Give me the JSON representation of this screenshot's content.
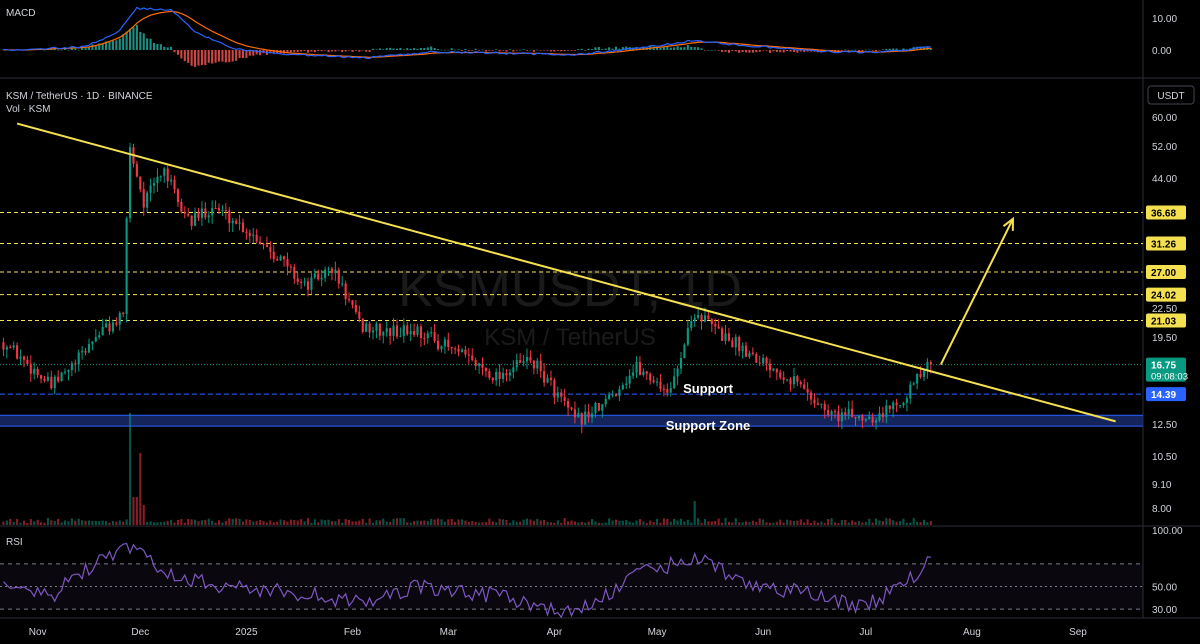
{
  "header": {
    "symbol_line": "KSM / TetherUS · 1D · BINANCE",
    "vol_line": "Vol · KSM",
    "currency_button": "USDT"
  },
  "watermark": {
    "main": "KSMUSDT, 1D",
    "sub": "KSM / TetherUS"
  },
  "macd": {
    "title": "MACD",
    "ticks": [
      "10.00",
      "0.00"
    ]
  },
  "rsi": {
    "title": "RSI",
    "ticks": [
      "100.00",
      "50.00",
      "30.00"
    ]
  },
  "price_axis": {
    "plain_ticks": [
      "60.00",
      "52.00",
      "44.00",
      "22.50",
      "19.50",
      "12.50",
      "10.50",
      "9.10",
      "8.00"
    ],
    "level_labels": [
      "36.68",
      "31.26",
      "27.00",
      "24.02",
      "21.03"
    ],
    "current_price": "16.75",
    "countdown": "09:08:03",
    "support_price": "14.39"
  },
  "annotations": {
    "support": "Support",
    "support_zone": "Support Zone"
  },
  "time_axis": [
    "Nov",
    "Dec",
    "2025",
    "Feb",
    "Mar",
    "Apr",
    "May",
    "Jun",
    "Jul",
    "Aug",
    "Sep"
  ],
  "colors": {
    "up": "#089981",
    "down": "#f23645",
    "trendline": "#f5e050",
    "level_line": "#f5e050",
    "support_zone": "#1a2a6c",
    "support_line": "#2962ff",
    "current_price": "#089981",
    "rsi_line": "#7e57c2",
    "macd_line": "#2962ff",
    "signal_line": "#ff6d00"
  },
  "chart_data": {
    "type": "candlestick",
    "symbol": "KSM / TetherUS",
    "interval": "1D",
    "exchange": "BINANCE",
    "y_scale": "log",
    "ylim": [
      7.6,
      66
    ],
    "x_range": [
      "2024-10-21",
      "2025-09-20"
    ],
    "last_close": 16.75,
    "horizontal_levels": [
      36.68,
      31.26,
      27.0,
      24.02,
      21.03
    ],
    "support_level": 14.39,
    "support_zone": [
      12.2,
      12.9
    ],
    "trendline": {
      "from": [
        "2024-10-26",
        58.0
      ],
      "to": [
        "2025-09-12",
        12.5
      ]
    },
    "projection_arrow": {
      "from": [
        "2025-07-20",
        16.75
      ],
      "to": [
        "2025-08-13",
        35.5
      ]
    },
    "ohlc_keypoints": [
      [
        "2024-10-22",
        18.8
      ],
      [
        "2024-11-05",
        14.9
      ],
      [
        "2024-11-12",
        16.8
      ],
      [
        "2024-11-19",
        19.8
      ],
      [
        "2024-11-26",
        21.3
      ],
      [
        "2024-11-28",
        51.0
      ],
      [
        "2024-12-02",
        38.5
      ],
      [
        "2024-12-08",
        46.0
      ],
      [
        "2024-12-12",
        38.0
      ],
      [
        "2024-12-16",
        35.0
      ],
      [
        "2024-12-22",
        38.0
      ],
      [
        "2024-12-30",
        34.5
      ],
      [
        "2025-01-08",
        30.5
      ],
      [
        "2025-01-18",
        25.0
      ],
      [
        "2025-01-26",
        27.5
      ],
      [
        "2025-02-03",
        20.5
      ],
      [
        "2025-02-10",
        19.8
      ],
      [
        "2025-02-20",
        20.0
      ],
      [
        "2025-03-05",
        17.5
      ],
      [
        "2025-03-15",
        15.8
      ],
      [
        "2025-03-25",
        17.2
      ],
      [
        "2025-04-07",
        12.5
      ],
      [
        "2025-04-15",
        13.5
      ],
      [
        "2025-04-25",
        16.5
      ],
      [
        "2025-05-05",
        14.5
      ],
      [
        "2025-05-12",
        22.0
      ],
      [
        "2025-05-20",
        19.5
      ],
      [
        "2025-05-30",
        17.5
      ],
      [
        "2025-06-10",
        15.5
      ],
      [
        "2025-06-20",
        13.0
      ],
      [
        "2025-06-30",
        12.8
      ],
      [
        "2025-07-06",
        13.0
      ],
      [
        "2025-07-13",
        14.5
      ],
      [
        "2025-07-20",
        16.75
      ]
    ],
    "volume_spikes": [
      [
        "2024-11-28",
        "very high"
      ],
      [
        "2024-12-01",
        "high"
      ],
      [
        "2025-05-12",
        "medium"
      ]
    ],
    "rsi_levels": [
      70,
      50,
      30
    ],
    "rsi_keypoints": [
      [
        "2024-10-22",
        50
      ],
      [
        "2024-11-05",
        40
      ],
      [
        "2024-11-12",
        60
      ],
      [
        "2024-11-28",
        85
      ],
      [
        "2024-12-10",
        60
      ],
      [
        "2024-12-25",
        50
      ],
      [
        "2025-01-15",
        45
      ],
      [
        "2025-02-03",
        35
      ],
      [
        "2025-02-20",
        50
      ],
      [
        "2025-03-15",
        42
      ],
      [
        "2025-04-07",
        25
      ],
      [
        "2025-04-25",
        60
      ],
      [
        "2025-05-12",
        76
      ],
      [
        "2025-05-25",
        55
      ],
      [
        "2025-06-20",
        40
      ],
      [
        "2025-06-30",
        32
      ],
      [
        "2025-07-10",
        48
      ],
      [
        "2025-07-20",
        72
      ]
    ],
    "macd_keypoints": [
      [
        "2024-10-22",
        0
      ],
      [
        "2024-11-15",
        1
      ],
      [
        "2024-11-25",
        6
      ],
      [
        "2024-11-30",
        13
      ],
      [
        "2024-12-10",
        12.5
      ],
      [
        "2024-12-18",
        5
      ],
      [
        "2024-12-28",
        0.5
      ],
      [
        "2025-01-10",
        -1.2
      ],
      [
        "2025-02-05",
        -2.5
      ],
      [
        "2025-02-25",
        -0.5
      ],
      [
        "2025-04-07",
        -1.5
      ],
      [
        "2025-04-25",
        0.5
      ],
      [
        "2025-05-12",
        3.0
      ],
      [
        "2025-05-25",
        1.5
      ],
      [
        "2025-06-20",
        -0.5
      ],
      [
        "2025-07-05",
        -0.8
      ],
      [
        "2025-07-20",
        1.0
      ]
    ]
  }
}
